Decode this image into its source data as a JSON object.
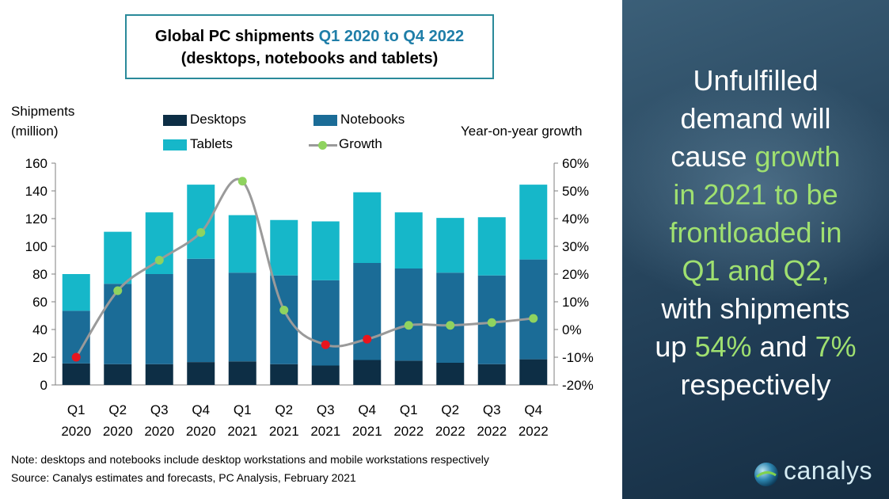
{
  "title": {
    "line1_prefix": "Global PC shipments ",
    "line1_accent": "Q1 2020 to Q4 2022",
    "line2": "(desktops, notebooks and tablets)"
  },
  "left_axis_title": [
    "Shipments",
    "(million)"
  ],
  "right_axis_title": "Year-on-year growth",
  "legend": {
    "desktops": "Desktops",
    "notebooks": "Notebooks",
    "tablets": "Tablets",
    "growth": "Growth"
  },
  "colors": {
    "desktops": "#0d2e45",
    "notebooks": "#1b6c97",
    "tablets": "#16b7c9",
    "growth_line": "#9a9a9a",
    "growth_positive": "#8fd35f",
    "growth_negative": "#e8151e",
    "axis": "#7f7f7f",
    "title_accent": "#1f7ea8",
    "side_highlight": "#9fe070"
  },
  "chart_data": {
    "type": "bar",
    "stacked": true,
    "categories": [
      "Q1 2020",
      "Q2 2020",
      "Q3 2020",
      "Q4 2020",
      "Q1 2021",
      "Q2 2021",
      "Q3 2021",
      "Q4 2021",
      "Q1 2022",
      "Q2 2022",
      "Q3 2022",
      "Q4 2022"
    ],
    "category_labels": [
      [
        "Q1",
        "2020"
      ],
      [
        "Q2",
        "2020"
      ],
      [
        "Q3",
        "2020"
      ],
      [
        "Q4",
        "2020"
      ],
      [
        "Q1",
        "2021"
      ],
      [
        "Q2",
        "2021"
      ],
      [
        "Q3",
        "2021"
      ],
      [
        "Q4",
        "2021"
      ],
      [
        "Q1",
        "2022"
      ],
      [
        "Q2",
        "2022"
      ],
      [
        "Q3",
        "2022"
      ],
      [
        "Q4",
        "2022"
      ]
    ],
    "series": [
      {
        "name": "Desktops",
        "values": [
          15.5,
          15,
          15,
          16.5,
          17,
          15,
          14,
          18,
          17.5,
          16,
          15,
          18.5
        ]
      },
      {
        "name": "Notebooks",
        "values": [
          38,
          58,
          65,
          74.5,
          64,
          64,
          61.5,
          70,
          66.5,
          65,
          64,
          72
        ]
      },
      {
        "name": "Tablets",
        "values": [
          26.5,
          37.5,
          44.5,
          53.5,
          41.5,
          40,
          42.5,
          51,
          40.5,
          39.5,
          42,
          54
        ]
      }
    ],
    "growth": {
      "name": "Growth",
      "values": [
        -10,
        14,
        25,
        35,
        53.5,
        7,
        -5.5,
        -3.5,
        1.5,
        1.5,
        2.5,
        4
      ]
    },
    "ylabel": "Shipments (million)",
    "y2label": "Year-on-year growth",
    "ylim": [
      0,
      160
    ],
    "yticks": [
      0,
      20,
      40,
      60,
      80,
      100,
      120,
      140,
      160
    ],
    "y2lim": [
      -20,
      60
    ],
    "y2ticks": [
      "-20%",
      "-10%",
      "0%",
      "10%",
      "20%",
      "30%",
      "40%",
      "50%",
      "60%"
    ],
    "legend_position": "top",
    "grid": false
  },
  "notes": {
    "note": "Note: desktops and notebooks include desktop workstations and mobile workstations respectively",
    "source": "Source: Canalys estimates and forecasts, PC Analysis, February 2021"
  },
  "side_panel": {
    "lines": [
      [
        {
          "t": "Unfulfilled",
          "hl": false
        }
      ],
      [
        {
          "t": "demand will",
          "hl": false
        }
      ],
      [
        {
          "t": "cause ",
          "hl": false
        },
        {
          "t": "growth",
          "hl": true
        }
      ],
      [
        {
          "t": "in 2021 to be",
          "hl": true
        }
      ],
      [
        {
          "t": "frontloaded in",
          "hl": true
        }
      ],
      [
        {
          "t": "Q1 and Q2,",
          "hl": true
        }
      ],
      [
        {
          "t": "with shipments",
          "hl": false
        }
      ],
      [
        {
          "t": "up ",
          "hl": false
        },
        {
          "t": "54%",
          "hl": true
        },
        {
          "t": " and ",
          "hl": false
        },
        {
          "t": "7%",
          "hl": true
        }
      ],
      [
        {
          "t": "respectively",
          "hl": false
        }
      ]
    ]
  },
  "logo": {
    "text": "canalys",
    "icon": "globe-icon"
  }
}
